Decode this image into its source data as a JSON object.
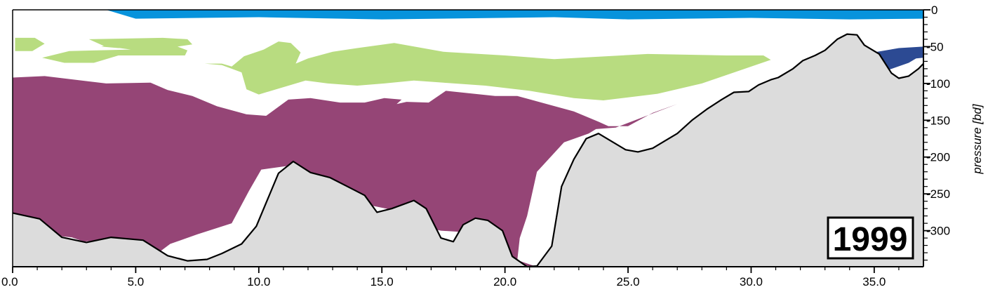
{
  "chart_data": {
    "type": "area",
    "title": "",
    "xlabel": "",
    "ylabel": "pressure [bd]",
    "xlim": [
      0,
      37
    ],
    "ylim": [
      -349,
      0
    ],
    "x_ticks": [
      0,
      5,
      10,
      15,
      20,
      25,
      30,
      35
    ],
    "x_tick_labels": [
      "0.0",
      "5.0",
      "10.0",
      "15.0",
      "20.0",
      "25.0",
      "30.0",
      "35.0"
    ],
    "y_ticks": [
      0,
      -50,
      -100,
      -150,
      -200,
      -250,
      -300
    ],
    "y_tick_labels": [
      "0",
      "-50",
      "-100",
      "-150",
      "-200",
      "-250",
      "-300"
    ],
    "annotation": "1999",
    "colors": {
      "top_layer": "#0793dc",
      "green_layer": "#b8dc80",
      "purple_layer": "#954576",
      "navy_layer": "#2c4a93",
      "bottom": "#dcdcdc",
      "bottom_outline": "#000000"
    },
    "series": [
      {
        "role": "top_layer",
        "polygons": [
          [
            [
              3.8,
              0
            ],
            [
              37,
              0
            ],
            [
              37,
              -12
            ],
            [
              34,
              -13
            ],
            [
              30,
              -11
            ],
            [
              25,
              -13
            ],
            [
              22,
              -10
            ],
            [
              15,
              -13
            ],
            [
              10,
              -10
            ],
            [
              5,
              -12
            ],
            [
              3.8,
              0
            ]
          ]
        ]
      },
      {
        "role": "green_layer",
        "polygons": [
          [
            [
              0.1,
              -38
            ],
            [
              0.9,
              -38
            ],
            [
              1.3,
              -46
            ],
            [
              0.8,
              -56
            ],
            [
              0.1,
              -56
            ]
          ],
          [
            [
              3.1,
              -40
            ],
            [
              6.1,
              -38
            ],
            [
              7.1,
              -40
            ],
            [
              7.3,
              -47
            ],
            [
              6.7,
              -50
            ],
            [
              7.1,
              -55
            ],
            [
              7.0,
              -62
            ],
            [
              4.3,
              -62
            ],
            [
              3.3,
              -72
            ],
            [
              2.1,
              -72
            ],
            [
              1.2,
              -65
            ],
            [
              2.3,
              -56
            ],
            [
              4.8,
              -54
            ],
            [
              3.7,
              -49
            ]
          ],
          [
            [
              4.1,
              -46
            ],
            [
              5.3,
              -49
            ],
            [
              4.3,
              -52
            ],
            [
              3.6,
              -50
            ]
          ],
          [
            [
              7.8,
              -73
            ],
            [
              8.5,
              -75
            ],
            [
              9.3,
              -85
            ],
            [
              9.5,
              -108
            ],
            [
              10.0,
              -115
            ],
            [
              11.1,
              -104
            ],
            [
              11.9,
              -96
            ],
            [
              12.8,
              -100
            ],
            [
              14.0,
              -103
            ],
            [
              15.1,
              -100
            ],
            [
              16.3,
              -96
            ],
            [
              17.5,
              -99
            ],
            [
              19.2,
              -103
            ],
            [
              21.0,
              -110
            ],
            [
              22.8,
              -120
            ],
            [
              24.0,
              -123
            ],
            [
              26.2,
              -114
            ],
            [
              28.0,
              -100
            ],
            [
              30.8,
              -68
            ],
            [
              30.5,
              -62
            ],
            [
              29.0,
              -62
            ],
            [
              25.8,
              -60
            ],
            [
              22.0,
              -67
            ],
            [
              20.0,
              -62
            ],
            [
              17.5,
              -57
            ],
            [
              15.5,
              -45
            ],
            [
              14.0,
              -52
            ],
            [
              13.0,
              -57
            ],
            [
              12.0,
              -66
            ],
            [
              11.5,
              -73
            ],
            [
              11.7,
              -58
            ],
            [
              11.3,
              -45
            ],
            [
              10.8,
              -43
            ],
            [
              10.2,
              -54
            ],
            [
              9.4,
              -63
            ],
            [
              8.9,
              -77
            ],
            [
              8.5,
              -73
            ]
          ]
        ]
      },
      {
        "role": "purple_layer",
        "polygons": [
          [
            [
              0,
              -92
            ],
            [
              1.3,
              -90
            ],
            [
              3.8,
              -100
            ],
            [
              5.6,
              -99
            ],
            [
              6.3,
              -109
            ],
            [
              7.3,
              -117
            ],
            [
              8.3,
              -131
            ],
            [
              9.5,
              -142
            ],
            [
              10.3,
              -144
            ],
            [
              11.2,
              -122
            ],
            [
              12.1,
              -120
            ],
            [
              13.3,
              -126
            ],
            [
              14.3,
              -126
            ],
            [
              15.1,
              -120
            ],
            [
              15.8,
              -122
            ],
            [
              15.6,
              -128
            ],
            [
              16.0,
              -125
            ],
            [
              16.9,
              -126
            ],
            [
              17.6,
              -110
            ],
            [
              19.6,
              -117
            ],
            [
              20.5,
              -117
            ],
            [
              22.8,
              -138
            ],
            [
              23.8,
              -152
            ],
            [
              24.2,
              -158
            ],
            [
              25.0,
              -158
            ],
            [
              26.0,
              -140
            ],
            [
              27.0,
              -128
            ],
            [
              24.5,
              -160
            ],
            [
              23.7,
              -162
            ],
            [
              23.4,
              -168
            ],
            [
              22.4,
              -180
            ],
            [
              21.3,
              -220
            ],
            [
              20.9,
              -280
            ],
            [
              20.6,
              -310
            ],
            [
              20.5,
              -340
            ],
            [
              21.2,
              -348
            ],
            [
              21.3,
              -349
            ],
            [
              20.8,
              -349
            ],
            [
              19.7,
              -336
            ],
            [
              18.8,
              -303
            ],
            [
              17.4,
              -300
            ],
            [
              16.6,
              -295
            ],
            [
              15.6,
              -273
            ],
            [
              14.3,
              -264
            ],
            [
              12.7,
              -240
            ],
            [
              11.2,
              -212
            ],
            [
              10.1,
              -217
            ],
            [
              9.6,
              -246
            ],
            [
              8.9,
              -290
            ],
            [
              7.5,
              -305
            ],
            [
              6.4,
              -318
            ],
            [
              5.8,
              -333
            ],
            [
              4.7,
              -320
            ],
            [
              3.7,
              -312
            ],
            [
              2.9,
              -315
            ],
            [
              2.4,
              -309
            ],
            [
              1.8,
              -307
            ],
            [
              0.6,
              -281
            ],
            [
              0,
              -276
            ]
          ]
        ]
      },
      {
        "role": "navy_layer",
        "polygons": [
          [
            [
              34.6,
              -60
            ],
            [
              36.0,
              -52
            ],
            [
              37,
              -50
            ],
            [
              37,
              -65
            ],
            [
              36.7,
              -66
            ],
            [
              36.4,
              -72
            ],
            [
              35.2,
              -86
            ],
            [
              34.8,
              -80
            ]
          ]
        ]
      }
    ],
    "bottom_profile": [
      [
        0,
        -276
      ],
      [
        1.1,
        -284
      ],
      [
        2.0,
        -309
      ],
      [
        3.0,
        -316
      ],
      [
        4.0,
        -309
      ],
      [
        5.3,
        -313
      ],
      [
        6.3,
        -334
      ],
      [
        7.1,
        -341
      ],
      [
        7.9,
        -339
      ],
      [
        8.5,
        -331
      ],
      [
        9.3,
        -318
      ],
      [
        9.9,
        -294
      ],
      [
        10.8,
        -222
      ],
      [
        11.4,
        -206
      ],
      [
        12.1,
        -221
      ],
      [
        12.9,
        -228
      ],
      [
        13.6,
        -240
      ],
      [
        14.3,
        -252
      ],
      [
        14.8,
        -275
      ],
      [
        15.4,
        -270
      ],
      [
        16.3,
        -259
      ],
      [
        16.8,
        -270
      ],
      [
        17.4,
        -310
      ],
      [
        17.9,
        -315
      ],
      [
        18.3,
        -292
      ],
      [
        18.8,
        -283
      ],
      [
        19.3,
        -286
      ],
      [
        19.9,
        -300
      ],
      [
        20.3,
        -335
      ],
      [
        20.9,
        -349
      ],
      [
        21.3,
        -348
      ],
      [
        21.9,
        -321
      ],
      [
        22.3,
        -240
      ],
      [
        22.8,
        -203
      ],
      [
        23.3,
        -175
      ],
      [
        23.8,
        -168
      ],
      [
        24.4,
        -180
      ],
      [
        24.9,
        -190
      ],
      [
        25.4,
        -193
      ],
      [
        26.0,
        -188
      ],
      [
        26.5,
        -178
      ],
      [
        27.0,
        -168
      ],
      [
        27.6,
        -150
      ],
      [
        28.2,
        -135
      ],
      [
        28.8,
        -122
      ],
      [
        29.3,
        -112
      ],
      [
        29.9,
        -111
      ],
      [
        30.3,
        -102
      ],
      [
        30.8,
        -95
      ],
      [
        31.1,
        -92
      ],
      [
        31.7,
        -80
      ],
      [
        32.1,
        -69
      ],
      [
        32.6,
        -62
      ],
      [
        33.0,
        -55
      ],
      [
        33.5,
        -40
      ],
      [
        33.9,
        -33
      ],
      [
        34.3,
        -34
      ],
      [
        34.6,
        -48
      ],
      [
        35.2,
        -60
      ],
      [
        35.7,
        -86
      ],
      [
        36.0,
        -93
      ],
      [
        36.4,
        -90
      ],
      [
        36.8,
        -80
      ],
      [
        37,
        -73
      ]
    ]
  }
}
